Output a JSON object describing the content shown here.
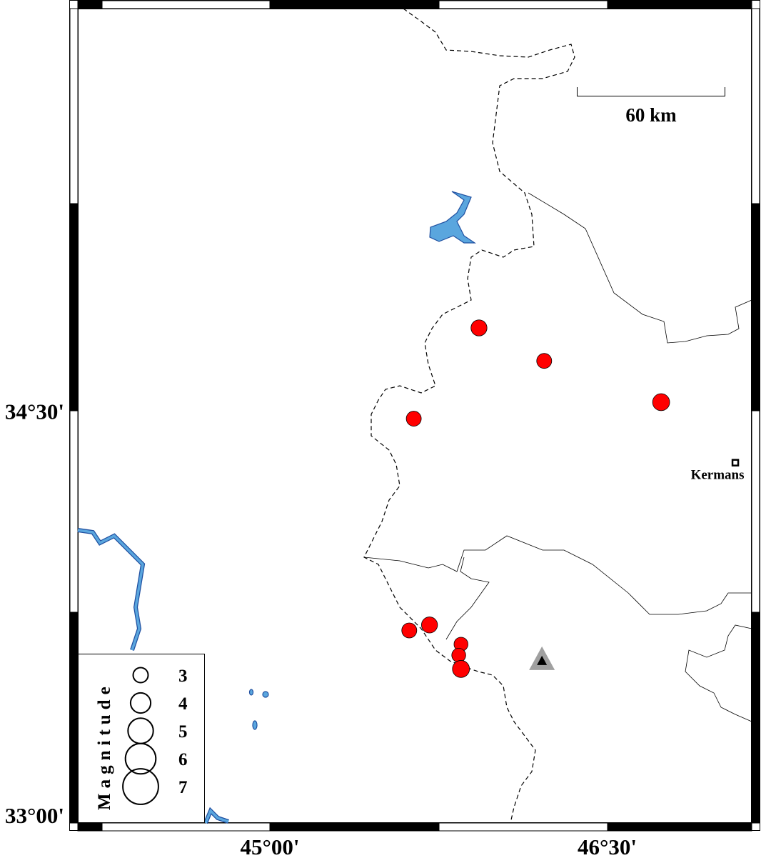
{
  "map": {
    "extent": {
      "lon": [
        44.146,
        47.141
      ],
      "lat": [
        33.0,
        35.96
      ]
    },
    "x_ticks": [
      {
        "value": 45.0,
        "label": "45°00'"
      },
      {
        "value": 46.5,
        "label": "46°30'"
      }
    ],
    "y_ticks": [
      {
        "value": 34.5,
        "label": "34°30'"
      },
      {
        "value": 33.0,
        "label": "33°00'"
      }
    ],
    "colors": {
      "event": "#ff0000",
      "water": "#5aa6de",
      "water_outline": "#1f4fa0",
      "station": "#a0a0a0",
      "frame": "#000000"
    },
    "scale_bar": {
      "label": "60 km",
      "length_km": 60
    },
    "city": {
      "name": "Kermans",
      "lon": 47.07,
      "lat": 34.31,
      "icon": "square-marker-icon"
    },
    "station": {
      "lon": 46.21,
      "lat": 33.59,
      "icon": "triangle-station-icon"
    },
    "events": [
      {
        "lon": 45.93,
        "lat": 34.8,
        "mag": 3.2
      },
      {
        "lon": 46.22,
        "lat": 34.68,
        "mag": 3.0
      },
      {
        "lon": 46.74,
        "lat": 34.53,
        "mag": 3.4
      },
      {
        "lon": 45.64,
        "lat": 34.47,
        "mag": 3.0
      },
      {
        "lon": 45.71,
        "lat": 33.72,
        "mag": 3.2
      },
      {
        "lon": 45.62,
        "lat": 33.7,
        "mag": 3.0
      },
      {
        "lon": 45.85,
        "lat": 33.65,
        "mag": 2.8
      },
      {
        "lon": 45.84,
        "lat": 33.61,
        "mag": 2.8
      },
      {
        "lon": 45.85,
        "lat": 33.56,
        "mag": 3.4
      }
    ]
  },
  "legend": {
    "title": "Magnitude",
    "items": [
      {
        "mag": 3,
        "label": "3"
      },
      {
        "mag": 4,
        "label": "4"
      },
      {
        "mag": 5,
        "label": "5"
      },
      {
        "mag": 6,
        "label": "6"
      },
      {
        "mag": 7,
        "label": "7"
      }
    ]
  }
}
